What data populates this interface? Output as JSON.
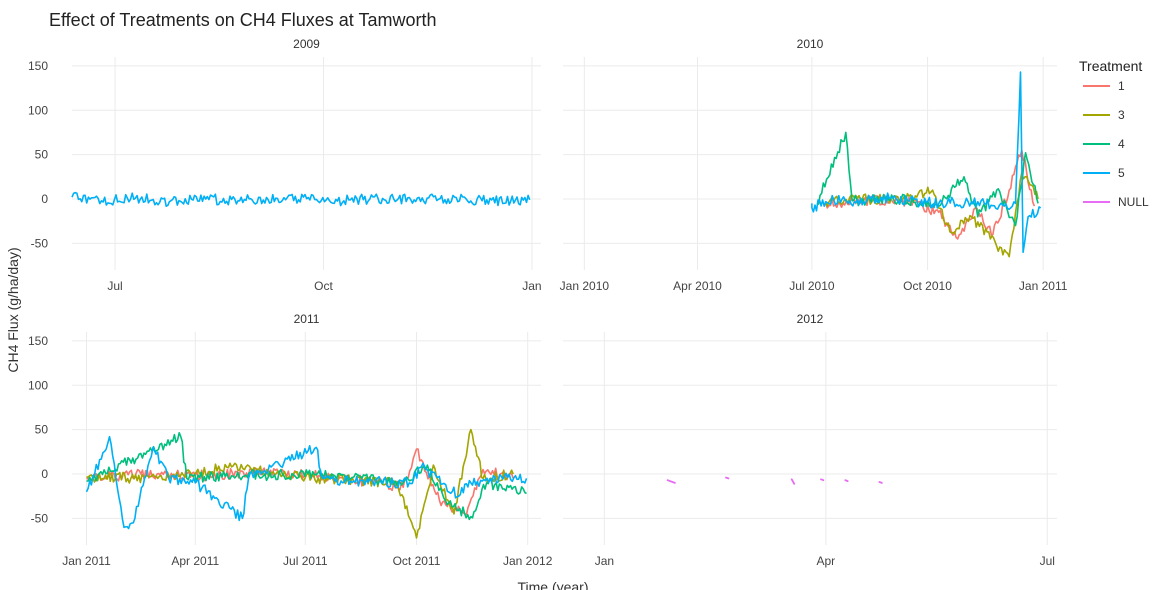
{
  "chart_data": {
    "type": "line",
    "title": "Effect of Treatments on CH4 Fluxes at Tamworth",
    "xlabel": "Time (year)",
    "ylabel": "CH4 Flux (g/ha/day)",
    "ylim": [
      -80,
      160
    ],
    "yticks": [
      -50,
      0,
      50,
      100,
      150
    ],
    "grid": true,
    "legend": {
      "title": "Treatment",
      "position": "right"
    },
    "series_colors": {
      "1": "#F8766D",
      "3": "#A3A500",
      "4": "#00BF7D",
      "5": "#00B0F6",
      "NULL": "#E76BF3"
    },
    "series_names": [
      "1",
      "3",
      "4",
      "5",
      "NULL"
    ],
    "panels": [
      {
        "label": "2009",
        "xlim": [
          "2009-06-12",
          "2010-01-05"
        ],
        "xticks": [
          {
            "date": "2009-07-01",
            "label": "Jul"
          },
          {
            "date": "2009-10-01",
            "label": "Oct"
          },
          {
            "date": "2010-01-01",
            "label": "Jan"
          }
        ],
        "series": [
          {
            "name": "5",
            "points": [
              [
                "2009-06-12",
                2
              ],
              [
                "2009-06-25",
                -2
              ],
              [
                "2009-07-10",
                1
              ],
              [
                "2009-07-25",
                -3
              ],
              [
                "2009-08-10",
                0
              ],
              [
                "2009-08-25",
                -2
              ],
              [
                "2009-09-10",
                1
              ],
              [
                "2009-09-25",
                -1
              ],
              [
                "2009-10-10",
                -2
              ],
              [
                "2009-10-25",
                1
              ],
              [
                "2009-11-10",
                -1
              ],
              [
                "2009-11-25",
                0
              ],
              [
                "2009-12-10",
                -2
              ],
              [
                "2009-12-31",
                -1
              ]
            ]
          }
        ]
      },
      {
        "label": "2010",
        "xlim": [
          "2009-12-15",
          "2011-01-12"
        ],
        "xticks": [
          {
            "date": "2010-01-01",
            "label": "Jan 2010"
          },
          {
            "date": "2010-04-01",
            "label": "Apr 2010"
          },
          {
            "date": "2010-07-01",
            "label": "Jul 2010"
          },
          {
            "date": "2010-10-01",
            "label": "Oct 2010"
          },
          {
            "date": "2011-01-01",
            "label": "Jan 2011"
          }
        ],
        "series": [
          {
            "name": "1",
            "points": [
              [
                "2010-07-12",
                -5
              ],
              [
                "2010-08-10",
                -2
              ],
              [
                "2010-09-10",
                -1
              ],
              [
                "2010-10-10",
                -15
              ],
              [
                "2010-10-25",
                -45
              ],
              [
                "2010-11-08",
                -10
              ],
              [
                "2010-11-22",
                -40
              ],
              [
                "2010-12-05",
                10
              ],
              [
                "2010-12-15",
                55
              ],
              [
                "2010-12-25",
                -8
              ]
            ]
          },
          {
            "name": "3",
            "points": [
              [
                "2010-07-12",
                -3
              ],
              [
                "2010-08-10",
                0
              ],
              [
                "2010-09-10",
                -2
              ],
              [
                "2010-10-05",
                10
              ],
              [
                "2010-10-20",
                -38
              ],
              [
                "2010-11-05",
                -20
              ],
              [
                "2010-11-20",
                -45
              ],
              [
                "2010-12-05",
                -65
              ],
              [
                "2010-12-15",
                30
              ],
              [
                "2010-12-28",
                0
              ]
            ]
          },
          {
            "name": "4",
            "points": [
              [
                "2010-07-05",
                -5
              ],
              [
                "2010-07-28",
                75
              ],
              [
                "2010-08-02",
                -2
              ],
              [
                "2010-09-10",
                0
              ],
              [
                "2010-10-10",
                -8
              ],
              [
                "2010-10-30",
                25
              ],
              [
                "2010-11-10",
                -20
              ],
              [
                "2010-11-25",
                10
              ],
              [
                "2010-12-10",
                -30
              ],
              [
                "2010-12-18",
                52
              ],
              [
                "2010-12-28",
                -5
              ]
            ]
          },
          {
            "name": "5",
            "points": [
              [
                "2010-07-01",
                -5
              ],
              [
                "2010-07-01",
                -10
              ],
              [
                "2010-07-12",
                -3
              ],
              [
                "2010-07-25",
                0
              ],
              [
                "2010-08-05",
                -4
              ],
              [
                "2010-08-25",
                2
              ],
              [
                "2010-09-15",
                -2
              ],
              [
                "2010-10-10",
                -5
              ],
              [
                "2010-11-10",
                -3
              ],
              [
                "2010-12-01",
                -8
              ],
              [
                "2010-12-10",
                -5
              ],
              [
                "2010-12-14",
                143
              ],
              [
                "2010-12-16",
                -60
              ],
              [
                "2010-12-20",
                -20
              ],
              [
                "2010-12-30",
                -10
              ]
            ]
          }
        ]
      },
      {
        "label": "2011",
        "xlim": [
          "2010-12-20",
          "2012-01-12"
        ],
        "xticks": [
          {
            "date": "2011-01-01",
            "label": "Jan 2011"
          },
          {
            "date": "2011-04-01",
            "label": "Apr 2011"
          },
          {
            "date": "2011-07-01",
            "label": "Jul 2011"
          },
          {
            "date": "2011-10-01",
            "label": "Oct 2011"
          },
          {
            "date": "2012-01-01",
            "label": "Jan 2012"
          }
        ],
        "series": [
          {
            "name": "1",
            "points": [
              [
                "2011-01-01",
                -5
              ],
              [
                "2011-02-15",
                0
              ],
              [
                "2011-04-01",
                -2
              ],
              [
                "2011-06-01",
                2
              ],
              [
                "2011-08-01",
                -4
              ],
              [
                "2011-09-20",
                -15
              ],
              [
                "2011-10-01",
                28
              ],
              [
                "2011-10-20",
                -30
              ],
              [
                "2011-11-10",
                -45
              ],
              [
                "2011-11-25",
                5
              ],
              [
                "2011-12-20",
                -5
              ]
            ]
          },
          {
            "name": "3",
            "points": [
              [
                "2011-01-01",
                -3
              ],
              [
                "2011-03-01",
                -5
              ],
              [
                "2011-05-01",
                8
              ],
              [
                "2011-07-01",
                -4
              ],
              [
                "2011-09-15",
                -10
              ],
              [
                "2011-10-01",
                -72
              ],
              [
                "2011-10-15",
                10
              ],
              [
                "2011-11-01",
                -45
              ],
              [
                "2011-11-15",
                50
              ],
              [
                "2011-11-25",
                -5
              ],
              [
                "2011-12-20",
                0
              ]
            ]
          },
          {
            "name": "4",
            "points": [
              [
                "2011-01-01",
                -8
              ],
              [
                "2011-03-20",
                42
              ],
              [
                "2011-03-25",
                -5
              ],
              [
                "2011-05-01",
                -2
              ],
              [
                "2011-07-15",
                0
              ],
              [
                "2011-09-20",
                -10
              ],
              [
                "2011-10-10",
                10
              ],
              [
                "2011-10-25",
                -30
              ],
              [
                "2011-11-15",
                -48
              ],
              [
                "2011-11-28",
                -10
              ],
              [
                "2011-12-31",
                -22
              ]
            ]
          },
          {
            "name": "5",
            "points": [
              [
                "2011-01-01",
                -20
              ],
              [
                "2011-01-20",
                42
              ],
              [
                "2011-02-01",
                -60
              ],
              [
                "2011-02-10",
                -50
              ],
              [
                "2011-02-25",
                30
              ],
              [
                "2011-03-10",
                -5
              ],
              [
                "2011-04-01",
                -10
              ],
              [
                "2011-05-10",
                -50
              ],
              [
                "2011-05-15",
                -5
              ],
              [
                "2011-07-10",
                30
              ],
              [
                "2011-07-15",
                -5
              ],
              [
                "2011-08-10",
                -8
              ],
              [
                "2011-09-25",
                -10
              ],
              [
                "2011-10-05",
                8
              ],
              [
                "2011-11-05",
                -25
              ],
              [
                "2011-11-15",
                -10
              ],
              [
                "2011-12-01",
                -5
              ],
              [
                "2011-12-31",
                -5
              ]
            ]
          }
        ]
      },
      {
        "label": "2012",
        "xlim": [
          "2011-12-15",
          "2012-07-05"
        ],
        "xticks": [
          {
            "date": "2012-01-01",
            "label": "Jan"
          },
          {
            "date": "2012-04-01",
            "label": "Apr"
          },
          {
            "date": "2012-07-01",
            "label": "Jul"
          }
        ],
        "segments": [
          {
            "name": "NULL",
            "points": [
              [
                "2012-01-27",
                -7
              ],
              [
                "2012-01-30",
                -10
              ]
            ]
          },
          {
            "name": "NULL",
            "points": [
              [
                "2012-02-20",
                -4
              ],
              [
                "2012-02-21",
                -5
              ]
            ]
          },
          {
            "name": "NULL",
            "points": [
              [
                "2012-03-18",
                -6
              ],
              [
                "2012-03-19",
                -11
              ]
            ]
          },
          {
            "name": "NULL",
            "points": [
              [
                "2012-03-30",
                -6
              ],
              [
                "2012-03-31",
                -7
              ]
            ]
          },
          {
            "name": "NULL",
            "points": [
              [
                "2012-04-09",
                -7
              ],
              [
                "2012-04-10",
                -8
              ]
            ]
          },
          {
            "name": "NULL",
            "points": [
              [
                "2012-04-23",
                -9
              ],
              [
                "2012-04-24",
                -10
              ]
            ]
          }
        ]
      }
    ]
  }
}
